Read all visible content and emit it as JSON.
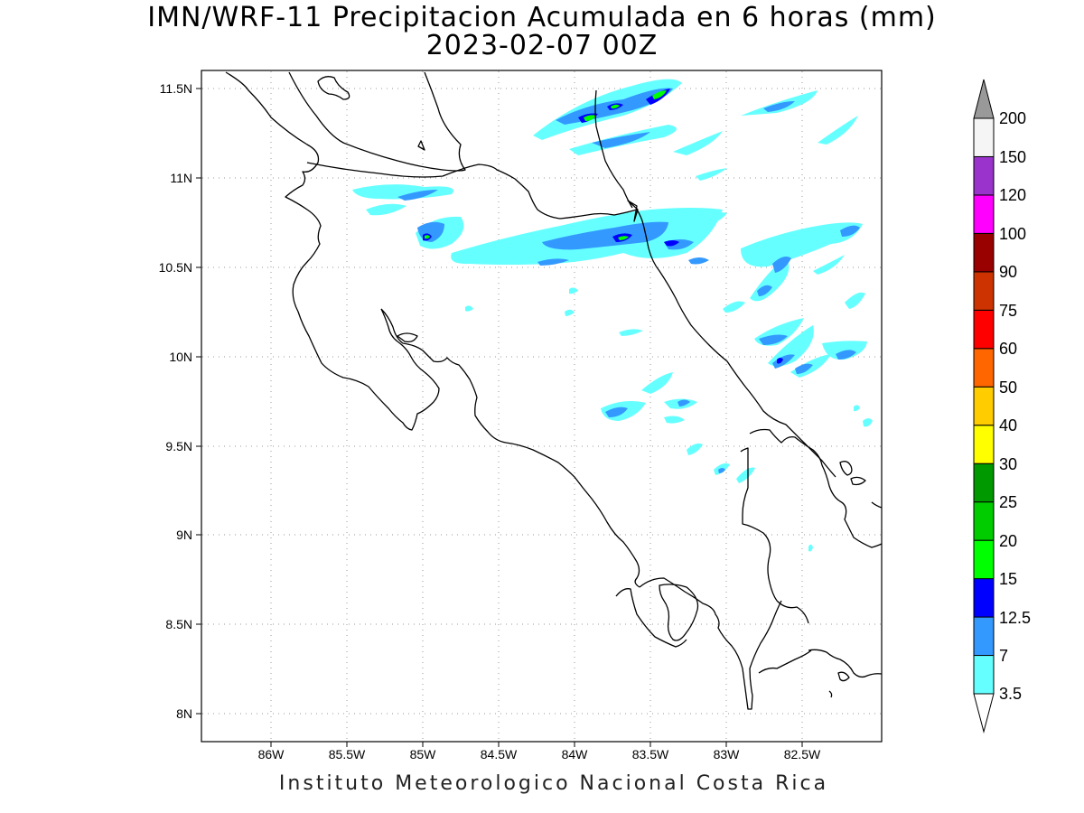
{
  "title_line1": "IMN/WRF-11 Precipitacion Acumulada en 6 horas (mm)",
  "title_line2": "2023-02-07 00Z",
  "footer": "Instituto Meteorologico Nacional Costa Rica",
  "map": {
    "lon_ticks": [
      "86W",
      "85.5W",
      "85W",
      "84.5W",
      "84W",
      "83.5W",
      "83W",
      "82.5W"
    ],
    "lat_ticks": [
      "11.5N",
      "11N",
      "10.5N",
      "10N",
      "9.5N",
      "9N",
      "8.5N",
      "8N"
    ],
    "grid": "dotted"
  },
  "colorbar": {
    "labels": [
      "3.5",
      "7",
      "12.5",
      "15",
      "20",
      "25",
      "30",
      "40",
      "50",
      "60",
      "75",
      "90",
      "100",
      "120",
      "150",
      "200"
    ],
    "colors": [
      "#66ffff",
      "#3399ff",
      "#0000ff",
      "#00ff00",
      "#00cc00",
      "#009900",
      "#ffff00",
      "#ffcc00",
      "#ff6600",
      "#ff0000",
      "#cc3300",
      "#990000",
      "#ff00ff",
      "#9933cc",
      "#f5f5f5"
    ],
    "over_color": "#999999",
    "under_color": "#ffffff"
  }
}
